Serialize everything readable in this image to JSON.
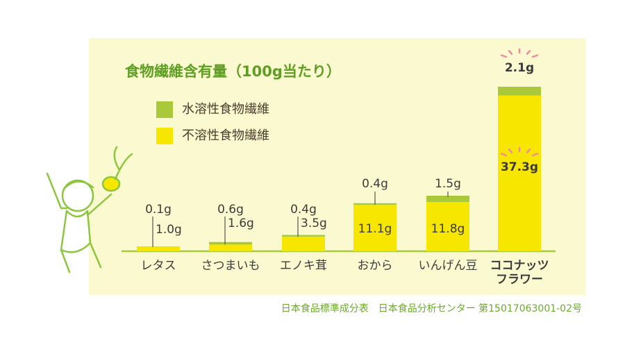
{
  "chart_data": {
    "type": "stacked_bar",
    "title": "食物繊維含有量（100g当たり）",
    "categories": [
      "レタス",
      "さつまいも",
      "エノキ茸",
      "おから",
      "いんげん豆",
      "ココナッツ\nフラワー"
    ],
    "series": [
      {
        "name": "水溶性食物繊維",
        "color": "#a9c93b",
        "values": [
          0.1,
          0.6,
          0.4,
          0.4,
          1.5,
          2.1
        ],
        "value_labels": [
          "0.1g",
          "0.6g",
          "0.4g",
          "0.4g",
          "1.5g",
          "2.1g"
        ]
      },
      {
        "name": "不溶性食物繊維",
        "color": "#f7e600",
        "values": [
          1.0,
          1.6,
          3.5,
          11.1,
          11.8,
          37.3
        ],
        "value_labels": [
          "1.0g",
          "1.6g",
          "3.5g",
          "11.1g",
          "11.8g",
          "37.3g"
        ]
      }
    ],
    "source": "日本食品標準成分表　日本食品分析センター 第15017063001-02号"
  }
}
